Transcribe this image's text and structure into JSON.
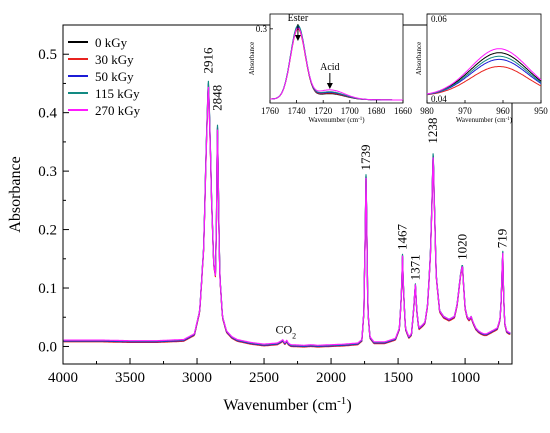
{
  "chart_data": [
    {
      "type": "line",
      "xlabel": "Wavenumber (cm",
      "xlabel_sup": "-1",
      "xlabel_tail": ")",
      "ylabel": "Absorbance",
      "xlim": [
        4000,
        650
      ],
      "ylim": [
        -0.03,
        0.55
      ],
      "x_reversed": true,
      "xticks": [
        4000,
        3500,
        3000,
        2500,
        2000,
        1500,
        1000
      ],
      "yticks": [
        0.0,
        0.1,
        0.2,
        0.3,
        0.4,
        0.5
      ],
      "ytick_labels": [
        "0.0",
        "0.1",
        "0.2",
        "0.3",
        "0.4",
        "0.5"
      ],
      "legend_position": "top-left",
      "series": [
        {
          "name": "0 kGy",
          "color": "#000000",
          "scale": 1.0,
          "offset": 0.0
        },
        {
          "name": "30 kGy",
          "color": "#e8231f",
          "scale": 0.99,
          "offset": -0.001
        },
        {
          "name": "50 kGy",
          "color": "#1c1cd6",
          "scale": 1.005,
          "offset": 0.0
        },
        {
          "name": "115 kGy",
          "color": "#128a82",
          "scale": 1.01,
          "offset": 0.001
        },
        {
          "name": "270 kGy",
          "color": "#ff1aff",
          "scale": 0.985,
          "offset": 0.002
        }
      ],
      "spectrum": {
        "x": [
          4000,
          3700,
          3500,
          3300,
          3100,
          3020,
          2980,
          2950,
          2930,
          2916,
          2905,
          2890,
          2875,
          2862,
          2855,
          2848,
          2840,
          2830,
          2810,
          2780,
          2740,
          2700,
          2600,
          2500,
          2400,
          2370,
          2360,
          2345,
          2330,
          2320,
          2300,
          2200,
          2150,
          2100,
          2000,
          1900,
          1800,
          1770,
          1755,
          1745,
          1739,
          1733,
          1725,
          1710,
          1680,
          1600,
          1520,
          1490,
          1475,
          1467,
          1460,
          1445,
          1420,
          1400,
          1385,
          1371,
          1360,
          1345,
          1320,
          1300,
          1280,
          1260,
          1250,
          1238,
          1230,
          1215,
          1190,
          1160,
          1120,
          1080,
          1060,
          1045,
          1035,
          1020,
          1010,
          1000,
          985,
          970,
          955,
          940,
          920,
          900,
          880,
          860,
          840,
          800,
          760,
          740,
          730,
          725,
          719,
          714,
          705,
          690,
          670,
          660
        ],
        "y": [
          0.009,
          0.009,
          0.008,
          0.008,
          0.01,
          0.02,
          0.06,
          0.17,
          0.35,
          0.455,
          0.38,
          0.24,
          0.14,
          0.12,
          0.22,
          0.39,
          0.26,
          0.12,
          0.05,
          0.025,
          0.015,
          0.01,
          0.005,
          0.002,
          0.004,
          0.008,
          0.01,
          0.004,
          0.009,
          0.004,
          0.001,
          0.0,
          0.001,
          0.0,
          0.001,
          0.002,
          0.004,
          0.01,
          0.06,
          0.2,
          0.29,
          0.2,
          0.06,
          0.015,
          0.006,
          0.006,
          0.012,
          0.03,
          0.09,
          0.155,
          0.1,
          0.03,
          0.015,
          0.02,
          0.06,
          0.105,
          0.06,
          0.03,
          0.035,
          0.04,
          0.07,
          0.15,
          0.22,
          0.335,
          0.25,
          0.12,
          0.06,
          0.05,
          0.045,
          0.05,
          0.07,
          0.1,
          0.12,
          0.14,
          0.1,
          0.065,
          0.05,
          0.045,
          0.05,
          0.04,
          0.03,
          0.025,
          0.022,
          0.02,
          0.02,
          0.025,
          0.03,
          0.045,
          0.08,
          0.125,
          0.16,
          0.1,
          0.04,
          0.025,
          0.022,
          0.022
        ]
      },
      "peak_labels": [
        {
          "text": "2916",
          "x": 2916,
          "y": 0.462
        },
        {
          "text": "2848",
          "x": 2848,
          "y": 0.398
        },
        {
          "text": "1739",
          "x": 1739,
          "y": 0.296
        },
        {
          "text": "1467",
          "x": 1467,
          "y": 0.16
        },
        {
          "text": "1371",
          "x": 1371,
          "y": 0.108
        },
        {
          "text": "1238",
          "x": 1238,
          "y": 0.342
        },
        {
          "text": "1020",
          "x": 1020,
          "y": 0.143
        },
        {
          "text": "719",
          "x": 719,
          "y": 0.163
        }
      ],
      "annotation": {
        "text": "CO",
        "sub": "2",
        "x": 2340,
        "y": 0.012
      }
    },
    {
      "type": "line",
      "xlabel": "Wavenumber (cm",
      "xlabel_sup": "-1",
      "xlabel_tail": ")",
      "ylabel": "Absorbance",
      "xlim": [
        1760,
        1660
      ],
      "ylim": [
        0.0,
        0.36
      ],
      "xticks": [
        1760,
        1740,
        1720,
        1700,
        1680,
        1660
      ],
      "yticks": [
        0.3
      ],
      "ytick_labels": [
        "0.3"
      ],
      "annotations": [
        "Ester",
        "Acid"
      ],
      "series": [
        {
          "name": "0 kGy",
          "color": "#000000",
          "peak": 0.29,
          "tail": 0.018
        },
        {
          "name": "30 kGy",
          "color": "#e8231f",
          "peak": 0.282,
          "tail": 0.02
        },
        {
          "name": "50 kGy",
          "color": "#1c1cd6",
          "peak": 0.293,
          "tail": 0.022
        },
        {
          "name": "115 kGy",
          "color": "#128a82",
          "peak": 0.296,
          "tail": 0.024
        },
        {
          "name": "270 kGy",
          "color": "#ff1aff",
          "peak": 0.285,
          "tail": 0.03
        }
      ]
    },
    {
      "type": "line",
      "xlabel": "Wavenumber (cm",
      "xlabel_sup": "-1",
      "xlabel_tail": ")",
      "ylabel": "Absorbance",
      "xlim": [
        980,
        950
      ],
      "ylim": [
        0.04,
        0.06
      ],
      "xticks": [
        980,
        970,
        960,
        950
      ],
      "yticks": [
        0.04,
        0.06
      ],
      "ytick_labels": [
        "0.04",
        "0.06"
      ],
      "series": [
        {
          "name": "0 kGy",
          "color": "#000000",
          "peak": 0.0513
        },
        {
          "name": "30 kGy",
          "color": "#e8231f",
          "peak": 0.0482
        },
        {
          "name": "50 kGy",
          "color": "#1c1cd6",
          "peak": 0.0498
        },
        {
          "name": "115 kGy",
          "color": "#128a82",
          "peak": 0.0505
        },
        {
          "name": "270 kGy",
          "color": "#ff1aff",
          "peak": 0.0522
        }
      ]
    }
  ]
}
